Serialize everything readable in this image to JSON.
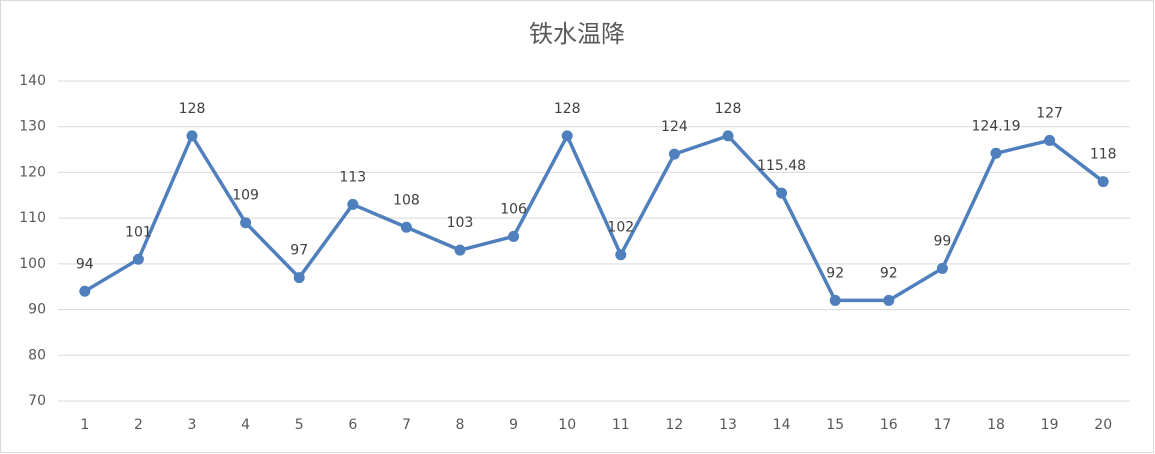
{
  "chart_data": {
    "type": "line",
    "title": "铁水温降",
    "categories": [
      "1",
      "2",
      "3",
      "4",
      "5",
      "6",
      "7",
      "8",
      "9",
      "10",
      "11",
      "12",
      "13",
      "14",
      "15",
      "16",
      "17",
      "18",
      "19",
      "20"
    ],
    "values": [
      94,
      101,
      128,
      109,
      97,
      113,
      108,
      103,
      106,
      128,
      102,
      124,
      128,
      115.48,
      92,
      92,
      99,
      124.19,
      127,
      118
    ],
    "color": "#4f7fbc",
    "ylim": [
      70,
      140
    ],
    "yticks": [
      70,
      80,
      90,
      100,
      110,
      120,
      130,
      140
    ],
    "grid": true,
    "data_labels": true
  }
}
